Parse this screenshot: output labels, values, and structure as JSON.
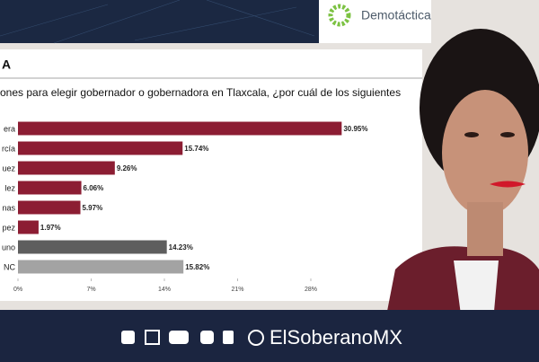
{
  "brand": "Demotáctica",
  "footer": "ElSoberanoMX",
  "chart_data": {
    "type": "bar",
    "orientation": "horizontal",
    "title": "A",
    "subtitle": "ones para elegir gobernador o gobernadora en Tlaxcala, ¿por cuál de los siguientes",
    "categories": [
      "era",
      "rcía",
      "uez",
      "lez",
      "nas",
      "pez",
      "uno",
      "NC"
    ],
    "values": [
      30.95,
      15.74,
      9.26,
      6.06,
      5.97,
      1.97,
      14.23,
      15.82
    ],
    "value_labels": [
      "30.95%",
      "15.74%",
      "9.26%",
      "6.06%",
      "5.97%",
      "1.97%",
      "14.23%",
      "15.82%"
    ],
    "colors": [
      "#8c1d33",
      "#8c1d33",
      "#8c1d33",
      "#8c1d33",
      "#8c1d33",
      "#8c1d33",
      "#5e5e5e",
      "#a3a3a3"
    ],
    "xlim": [
      0,
      31.5
    ],
    "xticks": [
      {
        "value": 0,
        "label": "0%"
      },
      {
        "value": 7,
        "label": "7%"
      },
      {
        "value": 14,
        "label": "14%"
      },
      {
        "value": 21,
        "label": "21%"
      },
      {
        "value": 28,
        "label": "28%"
      }
    ]
  }
}
